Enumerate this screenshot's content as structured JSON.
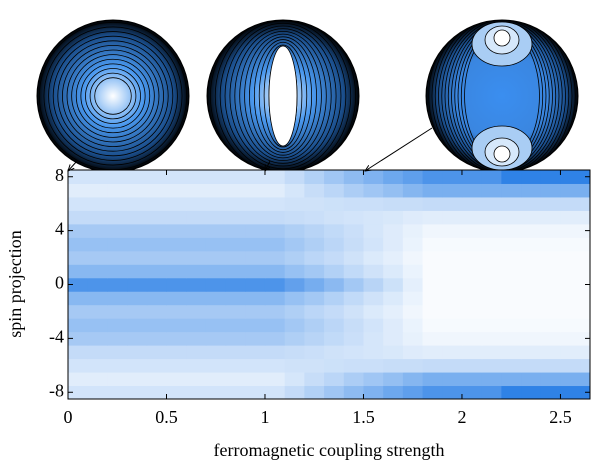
{
  "chart_data": {
    "type": "heatmap",
    "x_label": "ferromagnetic coupling strength",
    "y_label": "spin projection",
    "x": [
      0.05,
      0.15,
      0.25,
      0.35,
      0.45,
      0.55,
      0.65,
      0.75,
      0.85,
      0.95,
      1.05,
      1.15,
      1.25,
      1.35,
      1.45,
      1.55,
      1.65,
      1.75,
      1.85,
      1.95,
      2.05,
      2.15,
      2.25,
      2.35,
      2.45,
      2.55,
      2.65
    ],
    "y": [
      -8,
      -7,
      -6,
      -5,
      -4,
      -3,
      -2,
      -1,
      0,
      1,
      2,
      3,
      4,
      5,
      6,
      7,
      8
    ],
    "values": [
      [
        0.15,
        0.15,
        0.15,
        0.15,
        0.15,
        0.15,
        0.15,
        0.15,
        0.15,
        0.15,
        0.15,
        0.2,
        0.26,
        0.32,
        0.38,
        0.43,
        0.49,
        0.54,
        0.6,
        0.6,
        0.6,
        0.6,
        0.7,
        0.7,
        0.7,
        0.7,
        0.7
      ],
      [
        0.1,
        0.1,
        0.1,
        0.1,
        0.1,
        0.1,
        0.1,
        0.1,
        0.1,
        0.1,
        0.1,
        0.14,
        0.19,
        0.23,
        0.28,
        0.32,
        0.36,
        0.41,
        0.45,
        0.45,
        0.45,
        0.45,
        0.45,
        0.45,
        0.45,
        0.45,
        0.45
      ],
      [
        0.15,
        0.15,
        0.15,
        0.15,
        0.15,
        0.15,
        0.15,
        0.15,
        0.15,
        0.15,
        0.15,
        0.16,
        0.16,
        0.17,
        0.18,
        0.18,
        0.19,
        0.19,
        0.2,
        0.2,
        0.2,
        0.2,
        0.2,
        0.2,
        0.2,
        0.2,
        0.2
      ],
      [
        0.2,
        0.2,
        0.2,
        0.2,
        0.2,
        0.2,
        0.2,
        0.2,
        0.2,
        0.2,
        0.2,
        0.19,
        0.18,
        0.16,
        0.15,
        0.14,
        0.13,
        0.11,
        0.1,
        0.1,
        0.1,
        0.1,
        0.1,
        0.1,
        0.1,
        0.1,
        0.1
      ],
      [
        0.3,
        0.3,
        0.3,
        0.3,
        0.3,
        0.3,
        0.3,
        0.3,
        0.3,
        0.3,
        0.3,
        0.27,
        0.24,
        0.21,
        0.18,
        0.14,
        0.11,
        0.08,
        0.05,
        0.05,
        0.05,
        0.05,
        0.05,
        0.05,
        0.05,
        0.05,
        0.05
      ],
      [
        0.35,
        0.35,
        0.35,
        0.35,
        0.35,
        0.35,
        0.35,
        0.35,
        0.35,
        0.35,
        0.35,
        0.31,
        0.27,
        0.23,
        0.19,
        0.15,
        0.11,
        0.07,
        0.03,
        0.03,
        0.03,
        0.03,
        0.03,
        0.03,
        0.03,
        0.03,
        0.03
      ],
      [
        0.3,
        0.3,
        0.3,
        0.3,
        0.3,
        0.3,
        0.3,
        0.3,
        0.3,
        0.3,
        0.3,
        0.27,
        0.23,
        0.2,
        0.16,
        0.12,
        0.09,
        0.05,
        0.02,
        0.02,
        0.02,
        0.02,
        0.02,
        0.02,
        0.02,
        0.02,
        0.02
      ],
      [
        0.4,
        0.4,
        0.4,
        0.4,
        0.4,
        0.4,
        0.4,
        0.4,
        0.4,
        0.4,
        0.4,
        0.35,
        0.31,
        0.26,
        0.21,
        0.16,
        0.12,
        0.07,
        0.02,
        0.02,
        0.02,
        0.02,
        0.02,
        0.02,
        0.02,
        0.02,
        0.02
      ],
      [
        0.6,
        0.6,
        0.6,
        0.6,
        0.6,
        0.6,
        0.6,
        0.6,
        0.6,
        0.6,
        0.6,
        0.53,
        0.46,
        0.39,
        0.31,
        0.24,
        0.17,
        0.09,
        0.02,
        0.02,
        0.02,
        0.02,
        0.02,
        0.02,
        0.02,
        0.02,
        0.02
      ],
      [
        0.4,
        0.4,
        0.4,
        0.4,
        0.4,
        0.4,
        0.4,
        0.4,
        0.4,
        0.4,
        0.4,
        0.35,
        0.31,
        0.26,
        0.21,
        0.16,
        0.12,
        0.07,
        0.02,
        0.02,
        0.02,
        0.02,
        0.02,
        0.02,
        0.02,
        0.02,
        0.02
      ],
      [
        0.3,
        0.3,
        0.3,
        0.3,
        0.3,
        0.3,
        0.3,
        0.3,
        0.3,
        0.3,
        0.3,
        0.27,
        0.23,
        0.2,
        0.16,
        0.12,
        0.09,
        0.05,
        0.02,
        0.02,
        0.02,
        0.02,
        0.02,
        0.02,
        0.02,
        0.02,
        0.02
      ],
      [
        0.35,
        0.35,
        0.35,
        0.35,
        0.35,
        0.35,
        0.35,
        0.35,
        0.35,
        0.35,
        0.35,
        0.31,
        0.27,
        0.23,
        0.19,
        0.15,
        0.11,
        0.07,
        0.03,
        0.03,
        0.03,
        0.03,
        0.03,
        0.03,
        0.03,
        0.03,
        0.03
      ],
      [
        0.3,
        0.3,
        0.3,
        0.3,
        0.3,
        0.3,
        0.3,
        0.3,
        0.3,
        0.3,
        0.3,
        0.27,
        0.24,
        0.21,
        0.18,
        0.14,
        0.11,
        0.08,
        0.05,
        0.05,
        0.05,
        0.05,
        0.05,
        0.05,
        0.05,
        0.05,
        0.05
      ],
      [
        0.2,
        0.2,
        0.2,
        0.2,
        0.2,
        0.2,
        0.2,
        0.2,
        0.2,
        0.2,
        0.2,
        0.19,
        0.18,
        0.16,
        0.15,
        0.14,
        0.13,
        0.11,
        0.1,
        0.1,
        0.1,
        0.1,
        0.1,
        0.1,
        0.1,
        0.1,
        0.1
      ],
      [
        0.15,
        0.15,
        0.15,
        0.15,
        0.15,
        0.15,
        0.15,
        0.15,
        0.15,
        0.15,
        0.15,
        0.16,
        0.16,
        0.17,
        0.18,
        0.18,
        0.19,
        0.19,
        0.2,
        0.2,
        0.2,
        0.2,
        0.2,
        0.2,
        0.2,
        0.2,
        0.2
      ],
      [
        0.1,
        0.1,
        0.1,
        0.1,
        0.1,
        0.1,
        0.1,
        0.1,
        0.1,
        0.1,
        0.1,
        0.14,
        0.19,
        0.23,
        0.28,
        0.32,
        0.36,
        0.41,
        0.45,
        0.45,
        0.45,
        0.45,
        0.45,
        0.45,
        0.45,
        0.45,
        0.45
      ],
      [
        0.15,
        0.15,
        0.15,
        0.15,
        0.15,
        0.15,
        0.15,
        0.15,
        0.15,
        0.15,
        0.15,
        0.2,
        0.26,
        0.32,
        0.38,
        0.43,
        0.49,
        0.54,
        0.6,
        0.6,
        0.6,
        0.6,
        0.7,
        0.7,
        0.7,
        0.7,
        0.7
      ]
    ],
    "colormap": [
      "#ffffff",
      "#2f82e6"
    ],
    "clim": [
      0,
      0.7
    ],
    "xlim": [
      0,
      2.65
    ],
    "ylim": [
      -8.5,
      8.5
    ],
    "xticks": [
      0,
      0.5,
      1,
      1.5,
      2,
      2.5
    ],
    "yticks": [
      -8,
      -4,
      0,
      4,
      8
    ]
  }
}
